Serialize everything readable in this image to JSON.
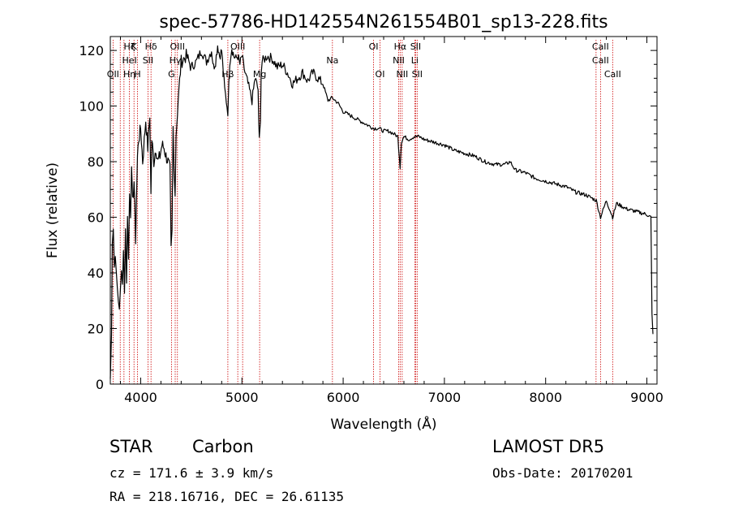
{
  "chart_data": {
    "type": "line",
    "title": "spec-57786-HD142554N261554B01_sp13-228.fits",
    "xlabel": "Wavelength (Å)",
    "ylabel": "Flux (relative)",
    "xlim": [
      3700,
      9100
    ],
    "ylim": [
      0,
      125
    ],
    "x_ticks": [
      4000,
      5000,
      6000,
      7000,
      8000,
      9000
    ],
    "y_ticks": [
      0,
      20,
      40,
      60,
      80,
      100,
      120
    ],
    "grid": false,
    "line_color": "#000000",
    "marker_color": "#cc0000",
    "series": [
      {
        "x": [
          3700,
          3705,
          3712,
          3720,
          3730,
          3740,
          3750,
          3760,
          3770,
          3780,
          3790,
          3800,
          3810,
          3820,
          3830,
          3840,
          3850,
          3860,
          3870,
          3880,
          3890,
          3900,
          3910,
          3920,
          3935,
          3950,
          3968,
          3980,
          4000,
          4020,
          4050,
          4070,
          4090,
          4101,
          4110,
          4130,
          4150,
          4170,
          4190,
          4210,
          4230,
          4250,
          4270,
          4290,
          4300,
          4310,
          4320,
          4330,
          4340,
          4350,
          4370,
          4400,
          4450,
          4500,
          4550,
          4600,
          4650,
          4700,
          4720,
          4740,
          4760,
          4780,
          4800,
          4830,
          4861,
          4880,
          4900,
          4920,
          4940,
          4960,
          4980,
          5000,
          5030,
          5060,
          5100,
          5130,
          5160,
          5167,
          5172,
          5183,
          5190,
          5200,
          5250,
          5300,
          5350,
          5400,
          5450,
          5500,
          5550,
          5600,
          5650,
          5700,
          5750,
          5800,
          5850,
          5893,
          5950,
          6000,
          6050,
          6100,
          6150,
          6200,
          6250,
          6300,
          6350,
          6400,
          6450,
          6500,
          6540,
          6563,
          6575,
          6600,
          6650,
          6700,
          6750,
          6800,
          6900,
          7000,
          7100,
          7200,
          7300,
          7400,
          7500,
          7600,
          7650,
          7700,
          7800,
          7900,
          8000,
          8100,
          8200,
          8300,
          8400,
          8500,
          8542,
          8600,
          8662,
          8700,
          8800,
          8900,
          9000,
          9040,
          9050,
          9060
        ],
        "y": [
          2,
          8,
          20,
          52,
          56,
          42,
          48,
          38,
          34,
          30,
          28,
          33,
          40,
          38,
          48,
          34,
          55,
          38,
          60,
          45,
          70,
          62,
          76,
          65,
          73,
          52,
          82,
          88,
          92,
          80,
          95,
          85,
          97,
          68,
          88,
          80,
          85,
          80,
          82,
          86,
          85,
          82,
          80,
          77,
          48,
          54,
          92,
          76,
          70,
          90,
          102,
          116,
          118,
          114,
          116,
          120,
          116,
          120,
          114,
          116,
          122,
          118,
          120,
          106,
          98,
          116,
          121,
          118,
          117,
          118,
          115,
          118,
          112,
          108,
          102,
          110,
          106,
          92,
          88,
          96,
          112,
          116,
          118,
          117,
          114,
          115,
          112,
          108,
          110,
          112,
          109,
          112,
          110,
          108,
          102,
          103,
          101,
          98,
          97,
          96,
          95,
          94,
          93,
          92,
          92,
          91,
          91,
          90,
          89,
          78,
          87,
          89,
          88,
          89,
          89,
          88,
          87,
          86,
          84,
          83,
          82,
          80,
          79,
          79,
          80,
          77,
          76,
          74,
          73,
          72,
          71,
          69,
          68,
          66,
          60,
          66,
          60,
          65,
          63,
          62,
          61,
          60,
          25,
          18
        ]
      }
    ],
    "lines": [
      {
        "wavelength": 3727,
        "row1": "",
        "row2": "",
        "row3": "OII"
      },
      {
        "wavelength": 3798,
        "row1": "",
        "row2": "",
        "row3": ""
      },
      {
        "wavelength": 3835,
        "row1": "",
        "row2": "",
        "row3": ""
      },
      {
        "wavelength": 3889,
        "row1": "Hζ",
        "row2": "HeI",
        "row3": "Hη"
      },
      {
        "wavelength": 3934,
        "row1": "K",
        "row2": "",
        "row3": ""
      },
      {
        "wavelength": 3969,
        "row1": "",
        "row2": "",
        "row3": "H"
      },
      {
        "wavelength": 4072,
        "row1": "",
        "row2": "SII",
        "row3": ""
      },
      {
        "wavelength": 4102,
        "row1": "Hδ",
        "row2": "",
        "row3": ""
      },
      {
        "wavelength": 4304,
        "row1": "",
        "row2": "",
        "row3": "G"
      },
      {
        "wavelength": 4341,
        "row1": "",
        "row2": "Hγ",
        "row3": ""
      },
      {
        "wavelength": 4363,
        "row1": "OIII",
        "row2": "",
        "row3": ""
      },
      {
        "wavelength": 4861,
        "row1": "",
        "row2": "",
        "row3": "Hβ"
      },
      {
        "wavelength": 4959,
        "row1": "OIII",
        "row2": "",
        "row3": ""
      },
      {
        "wavelength": 5007,
        "row1": "",
        "row2": "",
        "row3": ""
      },
      {
        "wavelength": 5175,
        "row1": "",
        "row2": "",
        "row3": "Mg"
      },
      {
        "wavelength": 5894,
        "row1": "",
        "row2": "Na",
        "row3": ""
      },
      {
        "wavelength": 6300,
        "row1": "OI",
        "row2": "",
        "row3": ""
      },
      {
        "wavelength": 6364,
        "row1": "",
        "row2": "",
        "row3": "OI"
      },
      {
        "wavelength": 6548,
        "row1": "",
        "row2": "NII",
        "row3": ""
      },
      {
        "wavelength": 6563,
        "row1": "Hα",
        "row2": "",
        "row3": ""
      },
      {
        "wavelength": 6583,
        "row1": "",
        "row2": "",
        "row3": "NII"
      },
      {
        "wavelength": 6707,
        "row1": "",
        "row2": "Li",
        "row3": ""
      },
      {
        "wavelength": 6716,
        "row1": "SII",
        "row2": "",
        "row3": ""
      },
      {
        "wavelength": 6731,
        "row1": "",
        "row2": "",
        "row3": "SII"
      },
      {
        "wavelength": 8498,
        "row1": "",
        "row2": "",
        "row3": ""
      },
      {
        "wavelength": 8542,
        "row1": "CaII",
        "row2": "CaII",
        "row3": ""
      },
      {
        "wavelength": 8662,
        "row1": "",
        "row2": "",
        "row3": "CaII"
      }
    ]
  },
  "info": {
    "class_label": "STAR",
    "subclass_label": "Carbon",
    "survey": "LAMOST DR5",
    "redshift": "cz = 171.6 ± 3.9 km/s",
    "obs_date": "Obs-Date: 20170201",
    "coords": "RA = 218.16716, DEC =  26.61135"
  }
}
